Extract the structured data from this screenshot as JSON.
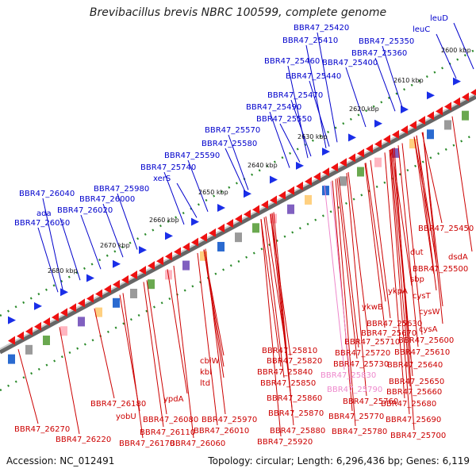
{
  "title": "Brevibacillus brevis NBRC 100599, complete genome",
  "footer": {
    "accession": "Accession: NC_012491",
    "summary": "Topology: circular; Length: 6,296,436 bp; Genes: 6,119"
  },
  "colors": {
    "top_label": "#0000cc",
    "bottom_label": "#cc0000",
    "highlight_label": "#ee88cc",
    "forward_feature": "#1a2ee8",
    "reverse_feature": "#ee1111",
    "backbone": "#888888",
    "tick_dot": "#2a8a2a"
  },
  "ticks": [
    "2600 kbp",
    "2610 kbp",
    "2620 kbp",
    "2630 kbp",
    "2640 kbp",
    "2650 kbp",
    "2660 kbp",
    "2670 kbp",
    "2680 kbp"
  ],
  "top_labels": [
    "leuD",
    "leuC",
    "BBR47_25420",
    "BBR47_25410",
    "BBR47_25350",
    "BBR47_25360",
    "BBR47_25460",
    "BBR47_25400",
    "BBR47_25440",
    "BBR47_25470",
    "BBR47_25490",
    "BBR47_25550",
    "BBR47_25570",
    "BBR47_25580",
    "BBR47_25590",
    "BBR47_25740",
    "xerS",
    "BBR47_25980",
    "BBR47_26040",
    "BBR47_26000",
    "BBR47_26020",
    "ada",
    "BBR47_26050"
  ],
  "bottom_labels": [
    "BBR47_25450",
    "dsdA",
    "dut",
    "BBR47_25500",
    "sbp",
    "ykpA",
    "cysT",
    "cysW",
    "ykwB",
    "BBR47_25630",
    "cysA",
    "BBR47_25670",
    "BBR47_25600",
    "BBR47_25710",
    "BBR47_25610",
    "BBR47_25720",
    "BBR47_25810",
    "BBR47_25820",
    "BBR47_25730",
    "BBR47_25640",
    "BBR47_25840",
    "BBR47_25850",
    "BBR47_25650",
    "BBR47_25660",
    "BBR47_25860",
    "BBR47_25760",
    "BBR47_25680",
    "BBR47_25870",
    "BBR47_25770",
    "BBR47_25690",
    "BBR47_25880",
    "BBR47_25780",
    "BBR47_25700",
    "cbiW",
    "kbl",
    "ltd",
    "ypdA",
    "BBR47_26180",
    "yobU",
    "BBR47_26080",
    "BBR47_25970",
    "BBR47_26110",
    "BBR47_26010",
    "BBR47_26270",
    "BBR47_26220",
    "BBR47_26170",
    "BBR47_26060",
    "BBR47_25920"
  ],
  "highlight_labels": [
    "BBR47_25830",
    "BBR47_25790"
  ]
}
